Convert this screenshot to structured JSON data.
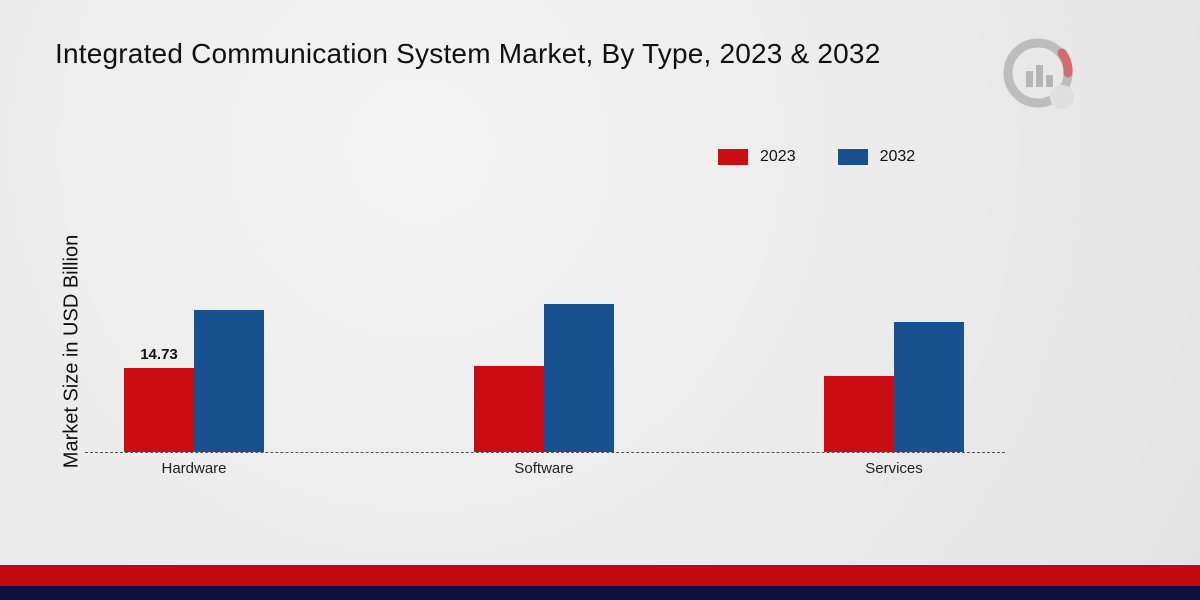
{
  "title": "Integrated Communication System Market, By Type, 2023 & 2032",
  "ylabel": "Market Size in USD Billion",
  "legend": [
    {
      "label": "2023",
      "color": "#c90d12"
    },
    {
      "label": "2032",
      "color": "#19508f"
    }
  ],
  "chart_data": {
    "type": "bar",
    "categories": [
      "Hardware",
      "Software",
      "Services"
    ],
    "series": [
      {
        "name": "2023",
        "color": "#c90d12",
        "values": [
          14.73,
          15.1,
          13.3
        ],
        "labels": [
          "14.73",
          "",
          ""
        ]
      },
      {
        "name": "2032",
        "color": "#19508f",
        "values": [
          24.9,
          26.0,
          22.8
        ],
        "labels": [
          "",
          "",
          ""
        ]
      }
    ],
    "title": "Integrated Communication System Market, By Type, 2023 & 2032",
    "xlabel": "",
    "ylabel": "Market Size in USD Billion",
    "ylim": [
      0,
      30
    ],
    "grid": false,
    "legend_position": "top-right",
    "baseline_style": "dashed"
  },
  "colors": {
    "footer_red": "#c3070e",
    "footer_navy": "#10103f",
    "watermark_gray": "#9a9a9a",
    "watermark_red": "#c3070e"
  }
}
